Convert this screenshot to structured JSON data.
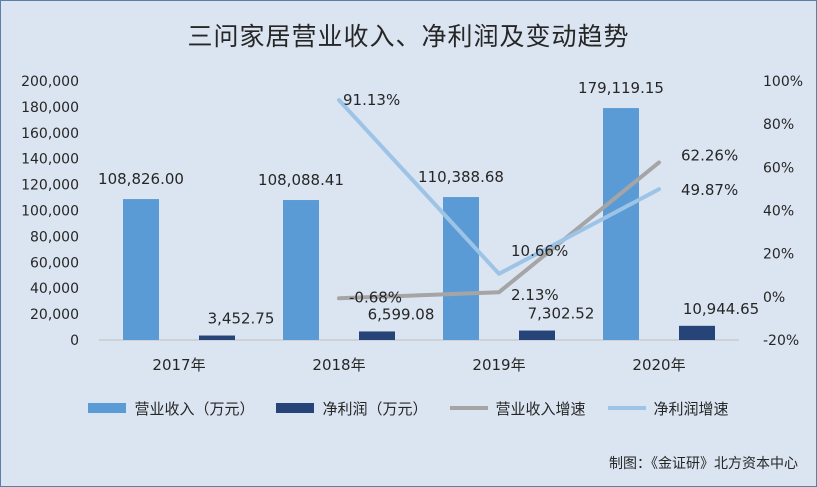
{
  "title": "三问家居营业收入、净利润及变动趋势",
  "source_note": "制图：《金证研》北方资本中心",
  "chart_data": {
    "type": "bar",
    "categories": [
      "2017年",
      "2018年",
      "2019年",
      "2020年"
    ],
    "y_left": {
      "range": [
        0,
        200000
      ],
      "ticks": [
        "0",
        "20,000",
        "40,000",
        "60,000",
        "80,000",
        "100,000",
        "120,000",
        "140,000",
        "160,000",
        "180,000",
        "200,000"
      ]
    },
    "y_right": {
      "range": [
        -20,
        100
      ],
      "ticks": [
        "-20%",
        "0%",
        "20%",
        "40%",
        "60%",
        "80%",
        "100%"
      ]
    },
    "series": [
      {
        "name": "营业收入（万元）",
        "kind": "bar",
        "axis": "left",
        "color": "#5b9bd5",
        "values": [
          108826.0,
          108088.41,
          110388.68,
          179119.15
        ],
        "labels": [
          "108,826.00",
          "108,088.41",
          "110,388.68",
          "179,119.15"
        ]
      },
      {
        "name": "净利润（万元）",
        "kind": "bar",
        "axis": "left",
        "color": "#264478",
        "values": [
          3452.75,
          6599.08,
          7302.52,
          10944.65
        ],
        "labels": [
          "3,452.75",
          "6,599.08",
          "7,302.52",
          "10,944.65"
        ]
      },
      {
        "name": "营业收入增速",
        "kind": "line",
        "axis": "right",
        "color": "#a5a5a5",
        "values": [
          null,
          -0.68,
          2.13,
          62.26
        ],
        "labels": [
          null,
          "-0.68%",
          "2.13%",
          "62.26%"
        ]
      },
      {
        "name": "净利润增速",
        "kind": "line",
        "axis": "right",
        "color": "#9dc3e6",
        "values": [
          null,
          91.13,
          10.66,
          49.87
        ],
        "labels": [
          null,
          "91.13%",
          "10.66%",
          "49.87%"
        ]
      }
    ],
    "legend_position": "bottom",
    "grid": false
  }
}
